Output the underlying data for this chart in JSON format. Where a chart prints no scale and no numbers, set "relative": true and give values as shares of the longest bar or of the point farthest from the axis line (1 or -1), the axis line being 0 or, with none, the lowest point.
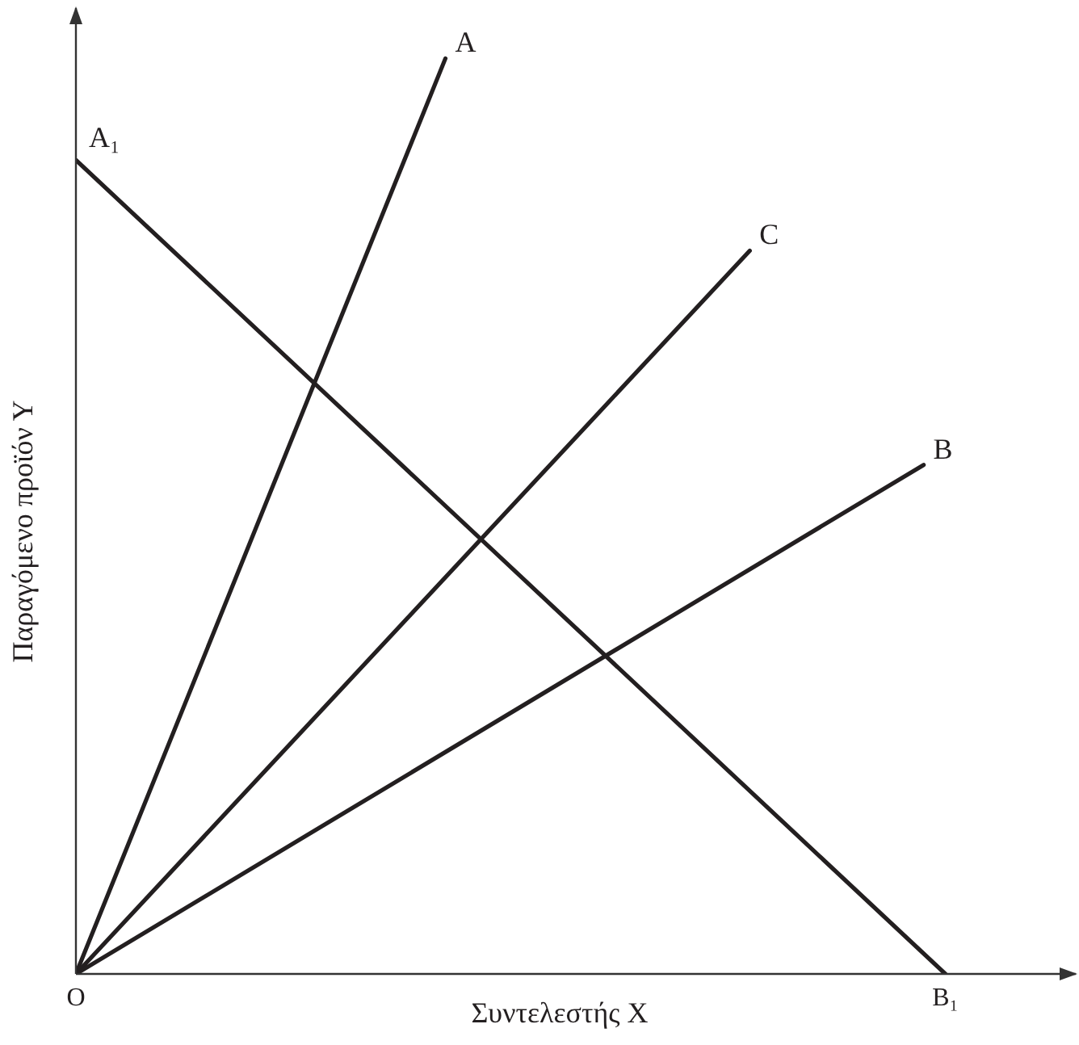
{
  "chart_data": {
    "type": "line",
    "relative": true,
    "xlabel": "Συντελεστής Χ",
    "ylabel": "Παραγόμενο προϊόν Υ",
    "categories": [
      "O",
      null,
      null,
      null,
      null,
      null,
      null,
      null,
      null,
      null,
      null,
      null,
      null,
      null,
      null,
      null,
      null,
      null,
      null,
      null,
      null,
      null,
      null,
      null,
      null,
      null,
      null,
      null,
      null,
      null,
      null,
      null,
      null,
      null,
      null,
      null,
      null,
      null,
      null,
      null,
      "B₁",
      null,
      null,
      null,
      null,
      null,
      null
    ],
    "annotations": [
      {
        "text": "A₁",
        "x": "O",
        "y": 0.889
      }
    ],
    "series": [
      {
        "name": "A",
        "color": "#231f20",
        "values": [
          0,
          null,
          null,
          null,
          null,
          null,
          null,
          null,
          null,
          null,
          null,
          null,
          null,
          null,
          null,
          null,
          null,
          1,
          null,
          null,
          null,
          null,
          null,
          null,
          null,
          null,
          null,
          null,
          null,
          null,
          null,
          null,
          null,
          null,
          null,
          null,
          null,
          null,
          null,
          null,
          null,
          null,
          null,
          null,
          null,
          null,
          null
        ]
      },
      {
        "name": "C",
        "color": "#231f20",
        "values": [
          0,
          null,
          null,
          null,
          null,
          null,
          null,
          null,
          null,
          null,
          null,
          null,
          null,
          null,
          null,
          null,
          null,
          null,
          null,
          null,
          null,
          null,
          null,
          null,
          null,
          null,
          null,
          null,
          null,
          null,
          null,
          0.79,
          null,
          null,
          null,
          null,
          null,
          null,
          null,
          null,
          null,
          null,
          null,
          null,
          null,
          null,
          null
        ]
      },
      {
        "name": "B",
        "color": "#231f20",
        "values": [
          0,
          null,
          null,
          null,
          null,
          null,
          null,
          null,
          null,
          null,
          null,
          null,
          null,
          null,
          null,
          null,
          null,
          null,
          null,
          null,
          null,
          null,
          null,
          null,
          null,
          null,
          null,
          null,
          null,
          null,
          null,
          null,
          null,
          null,
          null,
          null,
          null,
          null,
          null,
          0.556,
          null,
          null,
          null,
          null,
          null,
          null,
          null
        ]
      },
      {
        "color": "#231f20",
        "values": [
          0.889,
          null,
          null,
          null,
          null,
          null,
          null,
          null,
          null,
          null,
          null,
          null,
          null,
          null,
          null,
          null,
          null,
          null,
          null,
          null,
          null,
          null,
          null,
          null,
          null,
          null,
          null,
          null,
          null,
          null,
          null,
          null,
          null,
          null,
          null,
          null,
          null,
          null,
          null,
          null,
          0,
          null,
          null,
          null,
          null,
          null,
          null
        ]
      }
    ]
  }
}
